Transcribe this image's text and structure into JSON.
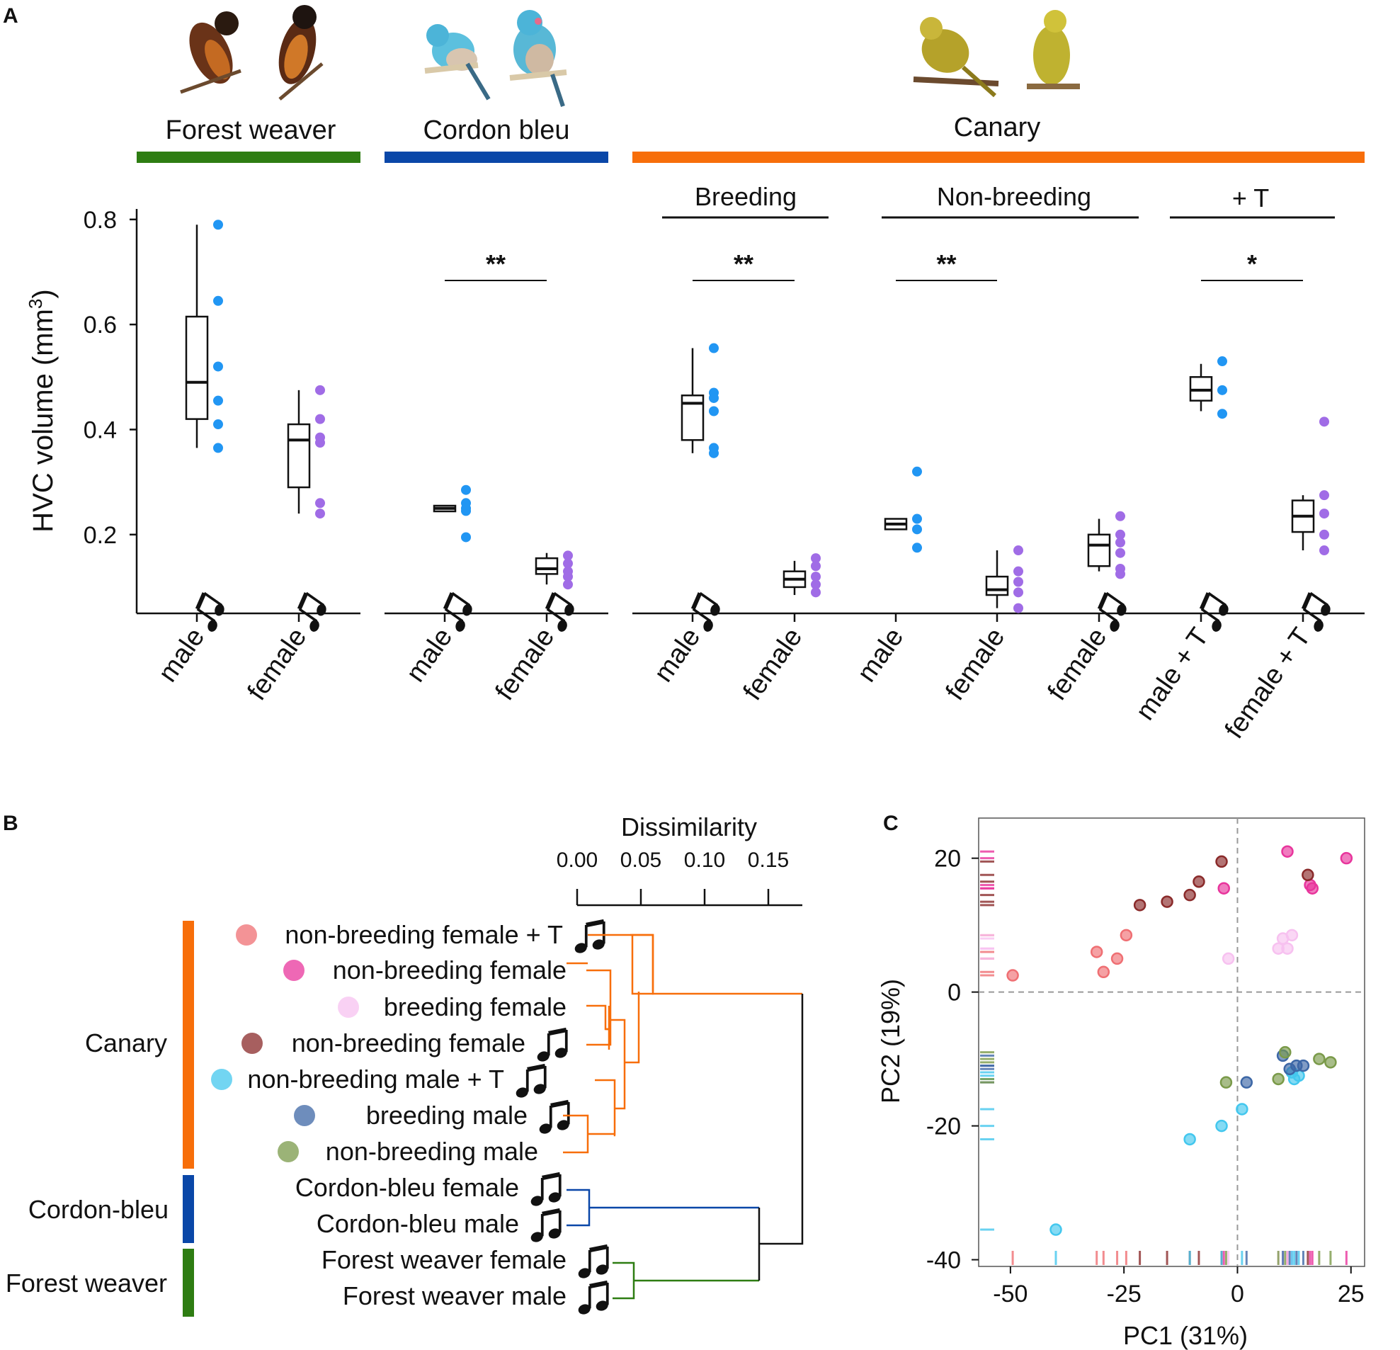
{
  "panels": {
    "a": "A",
    "b": "B",
    "c": "C"
  },
  "colors": {
    "forest_weaver": "#2e7d12",
    "cordon_bleu": "#0a47a8",
    "canary": "#f76e0a",
    "male_dot": "#2196f3",
    "female_dot": "#a06ce6",
    "nb_female_T": "#ef6f73",
    "nb_female": "#e8359c",
    "b_female": "#f7c1f0",
    "nb_female_song": "#8a2a2a",
    "nb_male_T": "#43c7ee",
    "b_male": "#3d67a6",
    "nb_male": "#7a9a49"
  },
  "chart_data": [
    {
      "type": "box",
      "title": "",
      "ylabel": "HVC volume (mm³)",
      "ylim": [
        0.05,
        0.82
      ],
      "yticks": [
        0.2,
        0.4,
        0.6,
        0.8
      ],
      "species": [
        {
          "name": "Forest weaver",
          "color_key": "forest_weaver"
        },
        {
          "name": "Cordon bleu",
          "color_key": "cordon_bleu"
        },
        {
          "name": "Canary",
          "color_key": "canary"
        }
      ],
      "conditions": [
        {
          "name": "Breeding"
        },
        {
          "name": "Non-breeding"
        },
        {
          "name": "+ T"
        }
      ],
      "significance": [
        {
          "label": "**",
          "groups": [
            2,
            3
          ]
        },
        {
          "label": "**",
          "groups": [
            4,
            5
          ]
        },
        {
          "label": "**",
          "groups": [
            6,
            7
          ]
        },
        {
          "label": "*",
          "groups": [
            9,
            10
          ]
        }
      ],
      "groups": [
        {
          "label": "male",
          "song": true,
          "sex": "male",
          "q1": 0.42,
          "median": 0.49,
          "q3": 0.615,
          "wlow": 0.365,
          "whigh": 0.79,
          "points": [
            0.79,
            0.645,
            0.52,
            0.455,
            0.41,
            0.365
          ]
        },
        {
          "label": "female",
          "song": true,
          "sex": "female",
          "q1": 0.29,
          "median": 0.38,
          "q3": 0.41,
          "wlow": 0.24,
          "whigh": 0.475,
          "points": [
            0.475,
            0.42,
            0.385,
            0.375,
            0.26,
            0.24
          ]
        },
        {
          "label": "male",
          "song": true,
          "sex": "male",
          "q1": 0.245,
          "median": 0.25,
          "q3": 0.255,
          "wlow": 0.245,
          "whigh": 0.255,
          "points": [
            0.285,
            0.26,
            0.25,
            0.245,
            0.195
          ]
        },
        {
          "label": "female",
          "song": true,
          "sex": "female",
          "q1": 0.125,
          "median": 0.135,
          "q3": 0.155,
          "wlow": 0.105,
          "whigh": 0.165,
          "points": [
            0.16,
            0.145,
            0.13,
            0.12,
            0.105
          ]
        },
        {
          "label": "male",
          "song": true,
          "sex": "male",
          "q1": 0.38,
          "median": 0.45,
          "q3": 0.465,
          "wlow": 0.355,
          "whigh": 0.555,
          "points": [
            0.555,
            0.47,
            0.46,
            0.435,
            0.365,
            0.355
          ]
        },
        {
          "label": "female",
          "song": false,
          "sex": "female",
          "q1": 0.1,
          "median": 0.115,
          "q3": 0.13,
          "wlow": 0.085,
          "whigh": 0.15,
          "points": [
            0.155,
            0.14,
            0.12,
            0.105,
            0.09
          ]
        },
        {
          "label": "male",
          "song": false,
          "sex": "male",
          "q1": 0.21,
          "median": 0.22,
          "q3": 0.23,
          "wlow": 0.21,
          "whigh": 0.23,
          "points": [
            0.32,
            0.23,
            0.21,
            0.175
          ]
        },
        {
          "label": "female",
          "song": false,
          "sex": "female",
          "q1": 0.085,
          "median": 0.095,
          "q3": 0.12,
          "wlow": 0.06,
          "whigh": 0.17,
          "points": [
            0.17,
            0.13,
            0.11,
            0.09,
            0.06
          ]
        },
        {
          "label": "female",
          "song": true,
          "sex": "female",
          "q1": 0.14,
          "median": 0.18,
          "q3": 0.2,
          "wlow": 0.13,
          "whigh": 0.23,
          "points": [
            0.235,
            0.2,
            0.185,
            0.165,
            0.135,
            0.125
          ]
        },
        {
          "label": "male + T",
          "song": true,
          "sex": "male",
          "q1": 0.455,
          "median": 0.475,
          "q3": 0.5,
          "wlow": 0.435,
          "whigh": 0.525,
          "points": [
            0.53,
            0.475,
            0.43
          ]
        },
        {
          "label": "female + T",
          "song": true,
          "sex": "female",
          "q1": 0.205,
          "median": 0.235,
          "q3": 0.265,
          "wlow": 0.17,
          "whigh": 0.275,
          "points": [
            0.415,
            0.275,
            0.24,
            0.2,
            0.17
          ]
        }
      ]
    },
    {
      "type": "dendrogram",
      "title": "Dissimilarity",
      "xticks": [
        "0.00",
        "0.05",
        "0.10",
        "0.15"
      ],
      "species_groups": [
        "Canary",
        "Cordon-bleu",
        "Forest weaver"
      ],
      "leaves": [
        {
          "label": "non-breeding female + T",
          "song": true,
          "color_key": "nb_female_T"
        },
        {
          "label": "non-breeding female",
          "song": false,
          "color_key": "nb_female"
        },
        {
          "label": "breeding female",
          "song": false,
          "color_key": "b_female"
        },
        {
          "label": "non-breeding female",
          "song": true,
          "color_key": "nb_female_song"
        },
        {
          "label": "non-breeding male + T",
          "song": true,
          "color_key": "nb_male_T"
        },
        {
          "label": "breeding male",
          "song": true,
          "color_key": "b_male"
        },
        {
          "label": "non-breeding male",
          "song": false,
          "color_key": "nb_male"
        },
        {
          "label": "Cordon-bleu female",
          "song": true,
          "color_key": null
        },
        {
          "label": "Cordon-bleu male",
          "song": true,
          "color_key": null
        },
        {
          "label": "Forest weaver female",
          "song": true,
          "color_key": null
        },
        {
          "label": "Forest weaver male",
          "song": true,
          "color_key": null
        }
      ]
    },
    {
      "type": "scatter",
      "xlabel": "PC1 (31%)",
      "ylabel": "PC2 (19%)",
      "xlim": [
        -57,
        28
      ],
      "ylim": [
        -41,
        26
      ],
      "xticks": [
        -50,
        -25,
        0,
        25
      ],
      "yticks": [
        20,
        0,
        -20,
        -40
      ],
      "series": [
        {
          "color_key": "nb_female_T",
          "points": [
            [
              -49.5,
              2.5
            ],
            [
              -31,
              6
            ],
            [
              -29.5,
              3
            ],
            [
              -26.5,
              5
            ],
            [
              -24.5,
              8.5
            ]
          ]
        },
        {
          "color_key": "nb_female",
          "points": [
            [
              -3,
              15.5
            ],
            [
              11,
              21
            ],
            [
              16,
              16
            ],
            [
              16.5,
              15.5
            ],
            [
              24,
              20
            ]
          ]
        },
        {
          "color_key": "b_female",
          "points": [
            [
              -2,
              5
            ],
            [
              9,
              6.5
            ],
            [
              10,
              8
            ],
            [
              11,
              6.5
            ],
            [
              12,
              8.5
            ]
          ]
        },
        {
          "color_key": "nb_female_song",
          "points": [
            [
              -21.5,
              13
            ],
            [
              -15.5,
              13.5
            ],
            [
              -10.5,
              14.5
            ],
            [
              -8.5,
              16.5
            ],
            [
              -3.5,
              19.5
            ],
            [
              15.5,
              17.5
            ]
          ]
        },
        {
          "color_key": "nb_male_T",
          "points": [
            [
              -40,
              -35.5
            ],
            [
              -10.5,
              -22
            ],
            [
              -3.5,
              -20
            ],
            [
              1,
              -17.5
            ],
            [
              12,
              -12
            ],
            [
              12.5,
              -13
            ],
            [
              13.5,
              -12.5
            ]
          ]
        },
        {
          "color_key": "b_male",
          "points": [
            [
              2,
              -13.5
            ],
            [
              10,
              -9.5
            ],
            [
              11.5,
              -11.5
            ],
            [
              13,
              -11
            ],
            [
              14.5,
              -11
            ]
          ]
        },
        {
          "color_key": "nb_male",
          "points": [
            [
              -2.5,
              -13.5
            ],
            [
              9,
              -13
            ],
            [
              10.5,
              -9
            ],
            [
              18,
              -10
            ],
            [
              20.5,
              -10.5
            ]
          ]
        }
      ]
    }
  ]
}
